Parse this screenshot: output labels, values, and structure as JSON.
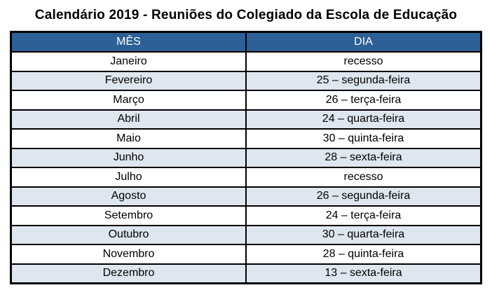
{
  "title": "Calendário 2019 - Reuniões do Colegiado da Escola de Educação",
  "table": {
    "columns": [
      "MÊS",
      "DIA"
    ],
    "rows": [
      {
        "mes": "Janeiro",
        "dia": "recesso"
      },
      {
        "mes": "Fevereiro",
        "dia": "25 – segunda-feira"
      },
      {
        "mes": "Março",
        "dia": "26 – terça-feira"
      },
      {
        "mes": "Abril",
        "dia": "24 – quarta-feira"
      },
      {
        "mes": "Maio",
        "dia": "30 – quinta-feira"
      },
      {
        "mes": "Junho",
        "dia": "28 – sexta-feira"
      },
      {
        "mes": "Julho",
        "dia": "recesso"
      },
      {
        "mes": "Agosto",
        "dia": "26 – segunda-feira"
      },
      {
        "mes": "Setembro",
        "dia": "24 – terça-feira"
      },
      {
        "mes": "Outubro",
        "dia": "30 – quarta-feira"
      },
      {
        "mes": "Novembro",
        "dia": "28 – quinta-feira"
      },
      {
        "mes": "Dezembro",
        "dia": "13 – sexta-feira"
      }
    ]
  },
  "colors": {
    "header_bg": "#2C6096",
    "header_text": "#FFFFFF",
    "row_bg": "#FFFFFF",
    "row_alt_bg": "#DEE6EF",
    "border": "#000000",
    "text": "#000000"
  }
}
